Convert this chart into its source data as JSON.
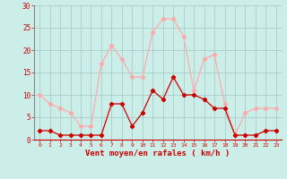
{
  "hours": [
    0,
    1,
    2,
    3,
    4,
    5,
    6,
    7,
    8,
    9,
    10,
    11,
    12,
    13,
    14,
    15,
    16,
    17,
    18,
    19,
    20,
    21,
    22,
    23
  ],
  "wind_avg": [
    2,
    2,
    1,
    1,
    1,
    1,
    1,
    8,
    8,
    3,
    6,
    11,
    9,
    14,
    10,
    10,
    9,
    7,
    7,
    1,
    1,
    1,
    2,
    2
  ],
  "wind_gust": [
    10,
    8,
    7,
    6,
    3,
    3,
    17,
    21,
    18,
    14,
    14,
    24,
    27,
    27,
    23,
    11,
    18,
    19,
    8,
    1,
    6,
    7,
    7,
    7
  ],
  "color_avg": "#cc0000",
  "color_gust": "#ffaaaa",
  "bg_color": "#cceee8",
  "grid_color": "#aacccc",
  "xlabel": "Vent moyen/en rafales ( km/h )",
  "xlabel_color": "#cc0000",
  "tick_color": "#cc0000",
  "ylim": [
    0,
    30
  ],
  "yticks": [
    0,
    5,
    10,
    15,
    20,
    25,
    30
  ],
  "xlim": [
    -0.5,
    23.5
  ]
}
